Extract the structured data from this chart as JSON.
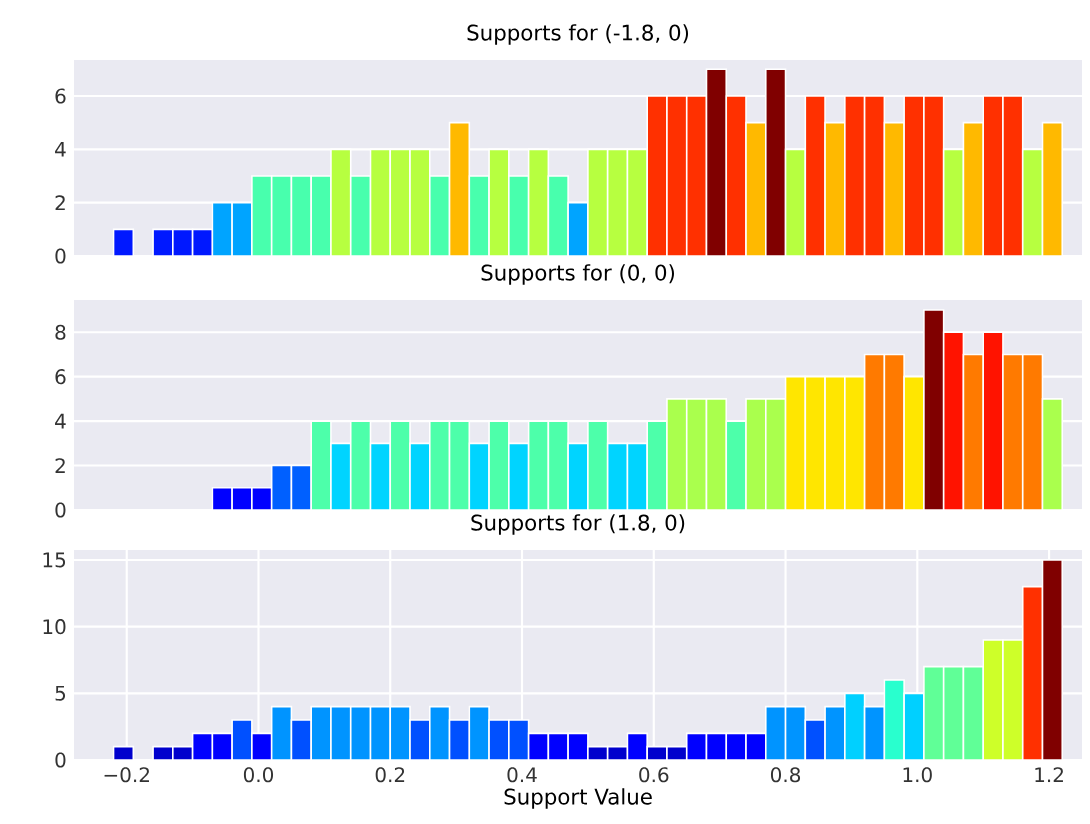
{
  "chart_data": [
    {
      "type": "histogram",
      "title": "Supports for (-1.8, 0)",
      "grid": "y",
      "tick_labels": "y",
      "xlim": [
        -0.28,
        1.25
      ],
      "ylim": [
        0,
        7.35
      ],
      "yticks": [
        0,
        2,
        4,
        6
      ],
      "bins": [
        -0.22,
        -0.19,
        -0.16,
        -0.13,
        -0.1,
        -0.07,
        -0.04,
        -0.01,
        0.02,
        0.05,
        0.08,
        0.11,
        0.14,
        0.17,
        0.2,
        0.23,
        0.26,
        0.29,
        0.32,
        0.35,
        0.38,
        0.41,
        0.44,
        0.47,
        0.5,
        0.53,
        0.56,
        0.59,
        0.62,
        0.65,
        0.68,
        0.71,
        0.74,
        0.77,
        0.8,
        0.83,
        0.86,
        0.89,
        0.92,
        0.95,
        0.98,
        1.01,
        1.04,
        1.07,
        1.1,
        1.13,
        1.16,
        1.19,
        1.22
      ],
      "values": [
        1,
        0,
        1,
        1,
        1,
        2,
        2,
        3,
        3,
        3,
        3,
        4,
        3,
        4,
        4,
        4,
        3,
        5,
        3,
        4,
        3,
        4,
        3,
        2,
        4,
        4,
        4,
        6,
        6,
        6,
        7,
        6,
        5,
        7,
        4,
        6,
        5,
        6,
        6,
        5,
        6,
        6,
        4,
        5,
        6,
        6,
        4,
        5
      ],
      "colors": [
        "#0018ff",
        "#00007f",
        "#0018ff",
        "#0018ff",
        "#0018ff",
        "#00a4ff",
        "#00a4ff",
        "#48ffad",
        "#48ffad",
        "#48ffad",
        "#48ffad",
        "#b7ff40",
        "#48ffad",
        "#b7ff40",
        "#b7ff40",
        "#b7ff40",
        "#48ffad",
        "#ffb900",
        "#48ffad",
        "#b7ff40",
        "#48ffad",
        "#b7ff40",
        "#48ffad",
        "#00a4ff",
        "#b7ff40",
        "#b7ff40",
        "#b7ff40",
        "#ff3000",
        "#ff3000",
        "#ff3000",
        "#800000",
        "#ff3000",
        "#ffb900",
        "#800000",
        "#b7ff40",
        "#ff3000",
        "#ffb900",
        "#ff3000",
        "#ff3000",
        "#ffb900",
        "#ff3000",
        "#ff3000",
        "#b7ff40",
        "#ffb900",
        "#ff3000",
        "#ff3000",
        "#b7ff40",
        "#ffb900"
      ]
    },
    {
      "type": "histogram",
      "title": "Supports for (0, 0)",
      "grid": "y",
      "tick_labels": "y",
      "xlim": [
        -0.28,
        1.25
      ],
      "ylim": [
        0,
        9.45
      ],
      "yticks": [
        0,
        2,
        4,
        6,
        8
      ],
      "bins": [
        -0.22,
        -0.19,
        -0.16,
        -0.13,
        -0.1,
        -0.07,
        -0.04,
        -0.01,
        0.02,
        0.05,
        0.08,
        0.11,
        0.14,
        0.17,
        0.2,
        0.23,
        0.26,
        0.29,
        0.32,
        0.35,
        0.38,
        0.41,
        0.44,
        0.47,
        0.5,
        0.53,
        0.56,
        0.59,
        0.62,
        0.65,
        0.68,
        0.71,
        0.74,
        0.77,
        0.8,
        0.83,
        0.86,
        0.89,
        0.92,
        0.95,
        0.98,
        1.01,
        1.04,
        1.07,
        1.1,
        1.13,
        1.16,
        1.19,
        1.22
      ],
      "values": [
        0,
        0,
        0,
        0,
        0,
        1,
        1,
        1,
        2,
        2,
        4,
        3,
        4,
        3,
        4,
        3,
        4,
        4,
        3,
        4,
        3,
        4,
        4,
        3,
        4,
        3,
        3,
        4,
        5,
        5,
        5,
        4,
        5,
        5,
        6,
        6,
        6,
        6,
        7,
        7,
        6,
        9,
        8,
        7,
        8,
        7,
        7,
        5
      ],
      "colors": [
        "#00007f",
        "#00007f",
        "#00007f",
        "#00007f",
        "#00007f",
        "#0000ff",
        "#0000ff",
        "#0000ff",
        "#0060ff",
        "#0060ff",
        "#4dffaa",
        "#00d4ff",
        "#4dffaa",
        "#00d4ff",
        "#4dffaa",
        "#00d4ff",
        "#4dffaa",
        "#4dffaa",
        "#00d4ff",
        "#4dffaa",
        "#00d4ff",
        "#4dffaa",
        "#4dffaa",
        "#00d4ff",
        "#4dffaa",
        "#00d4ff",
        "#00d4ff",
        "#4dffaa",
        "#aaff4d",
        "#aaff4d",
        "#aaff4d",
        "#4dffaa",
        "#aaff4d",
        "#aaff4d",
        "#ffe600",
        "#ffe600",
        "#ffe600",
        "#ffe600",
        "#ff7a00",
        "#ff7a00",
        "#ffe600",
        "#800000",
        "#ff1300",
        "#ff7a00",
        "#ff1300",
        "#ff7a00",
        "#ff7a00",
        "#aaff4d"
      ]
    },
    {
      "type": "histogram",
      "title": "Supports for (1.8, 0)",
      "xlabel": "Support Value",
      "grid": true,
      "xlim": [
        -0.28,
        1.25
      ],
      "ylim": [
        0,
        15.75
      ],
      "yticks": [
        0,
        5,
        10,
        15
      ],
      "xticks": [
        {
          "value": -0.2,
          "label": "−0.2"
        },
        {
          "value": 0,
          "label": "0.0"
        },
        {
          "value": 0.2,
          "label": "0.2"
        },
        {
          "value": 0.4,
          "label": "0.4"
        },
        {
          "value": 0.6,
          "label": "0.6"
        },
        {
          "value": 0.8,
          "label": "0.8"
        },
        {
          "value": 1,
          "label": "1.0"
        },
        {
          "value": 1.2,
          "label": "1.2"
        }
      ],
      "bins": [
        -0.22,
        -0.19,
        -0.16,
        -0.13,
        -0.1,
        -0.07,
        -0.04,
        -0.01,
        0.02,
        0.05,
        0.08,
        0.11,
        0.14,
        0.17,
        0.2,
        0.23,
        0.26,
        0.29,
        0.32,
        0.35,
        0.38,
        0.41,
        0.44,
        0.47,
        0.5,
        0.53,
        0.56,
        0.59,
        0.62,
        0.65,
        0.68,
        0.71,
        0.74,
        0.77,
        0.8,
        0.83,
        0.86,
        0.89,
        0.92,
        0.95,
        0.98,
        1.01,
        1.04,
        1.07,
        1.1,
        1.13,
        1.16,
        1.19,
        1.22
      ],
      "values": [
        1,
        0,
        1,
        1,
        2,
        2,
        3,
        2,
        4,
        3,
        4,
        4,
        4,
        4,
        4,
        3,
        4,
        3,
        4,
        3,
        3,
        2,
        2,
        2,
        1,
        1,
        2,
        1,
        1,
        2,
        2,
        2,
        2,
        4,
        4,
        3,
        4,
        5,
        4,
        6,
        5,
        7,
        7,
        7,
        9,
        9,
        13,
        15
      ],
      "colors": [
        "#0000cd",
        "#00007f",
        "#0000cd",
        "#0000cd",
        "#0000ff",
        "#0000ff",
        "#0050ff",
        "#0000ff",
        "#0094ff",
        "#0050ff",
        "#0094ff",
        "#0094ff",
        "#0094ff",
        "#0094ff",
        "#0094ff",
        "#0050ff",
        "#0094ff",
        "#0050ff",
        "#0094ff",
        "#0050ff",
        "#0050ff",
        "#0000ff",
        "#0000ff",
        "#0000ff",
        "#0000cd",
        "#0000cd",
        "#0000ff",
        "#0000cd",
        "#0000cd",
        "#0000ff",
        "#0000ff",
        "#0000ff",
        "#0000ff",
        "#0094ff",
        "#0094ff",
        "#0050ff",
        "#0094ff",
        "#00d0ff",
        "#0094ff",
        "#29ffce",
        "#00d0ff",
        "#60ff97",
        "#60ff97",
        "#60ff97",
        "#ceff29",
        "#ceff29",
        "#ff3000",
        "#800000"
      ]
    }
  ]
}
